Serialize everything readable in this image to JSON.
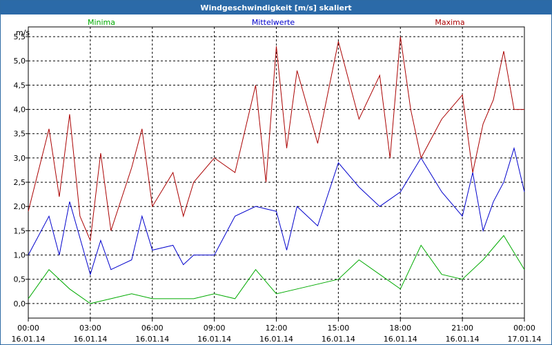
{
  "window": {
    "title": "Windgeschwindigkeit [m/s] skaliert"
  },
  "chart_data": {
    "type": "line",
    "title": "Windgeschwindigkeit [m/s] skaliert",
    "ylabel": "m/s",
    "ylim": [
      -0.3,
      5.7
    ],
    "yticks": [
      "0,0",
      "0,5",
      "1,0",
      "1,5",
      "2,0",
      "2,5",
      "3,0",
      "3,5",
      "4,0",
      "4,5",
      "5,0",
      "5,5"
    ],
    "ytick_values": [
      0,
      0.5,
      1,
      1.5,
      2,
      2.5,
      3,
      3.5,
      4,
      4.5,
      5,
      5.5
    ],
    "xlim_hours": [
      0,
      24
    ],
    "xticks": [
      {
        "time": "00:00",
        "date": "16.01.14",
        "hour": 0
      },
      {
        "time": "03:00",
        "date": "16.01.14",
        "hour": 3
      },
      {
        "time": "06:00",
        "date": "16.01.14",
        "hour": 6
      },
      {
        "time": "09:00",
        "date": "16.01.14",
        "hour": 9
      },
      {
        "time": "12:00",
        "date": "16.01.14",
        "hour": 12
      },
      {
        "time": "15:00",
        "date": "16.01.14",
        "hour": 15
      },
      {
        "time": "18:00",
        "date": "16.01.14",
        "hour": 18
      },
      {
        "time": "21:00",
        "date": "16.01.14",
        "hour": 21
      },
      {
        "time": "00:00",
        "date": "17.01.14",
        "hour": 24
      }
    ],
    "grid": true,
    "legend": "top",
    "series": [
      {
        "name": "Minima",
        "color": "#00aa00",
        "hours": [
          0,
          1,
          2,
          3,
          4,
          5,
          6,
          7,
          8,
          9,
          10,
          11,
          12,
          13,
          14,
          15,
          16,
          17,
          18,
          19,
          20,
          21,
          22,
          23,
          24
        ],
        "values": [
          0.1,
          0.7,
          0.3,
          0.0,
          0.1,
          0.2,
          0.1,
          0.1,
          0.1,
          0.2,
          0.1,
          0.7,
          0.2,
          0.3,
          0.4,
          0.5,
          0.9,
          0.6,
          0.3,
          1.2,
          0.6,
          0.5,
          0.9,
          1.4,
          0.7
        ]
      },
      {
        "name": "Mittelwerte",
        "color": "#0000cc",
        "hours": [
          0,
          1,
          1.5,
          2,
          3,
          3.5,
          4,
          5,
          5.5,
          6,
          7,
          7.5,
          8,
          9,
          10,
          11,
          12,
          12.5,
          13,
          14,
          15,
          16,
          17,
          18,
          19,
          20,
          21,
          21.5,
          22,
          22.5,
          23,
          23.5,
          24
        ],
        "values": [
          1.0,
          1.8,
          1.0,
          2.1,
          0.6,
          1.3,
          0.7,
          0.9,
          1.8,
          1.1,
          1.2,
          0.8,
          1.0,
          1.0,
          1.8,
          2.0,
          1.9,
          1.1,
          2.0,
          1.6,
          2.9,
          2.4,
          2.0,
          2.3,
          3.0,
          2.3,
          1.8,
          2.7,
          1.5,
          2.1,
          2.5,
          3.2,
          2.3
        ]
      },
      {
        "name": "Maxima",
        "color": "#aa0000",
        "hours": [
          0,
          1,
          1.5,
          2,
          2.5,
          3,
          3.5,
          4,
          5,
          5.5,
          6,
          7,
          7.5,
          8,
          9,
          10,
          11,
          11.5,
          12,
          12.5,
          13,
          14,
          15,
          16,
          17,
          17.5,
          18,
          18.5,
          19,
          20,
          21,
          21.5,
          22,
          22.5,
          23,
          23.5,
          24
        ],
        "values": [
          1.9,
          3.6,
          2.2,
          3.9,
          1.8,
          1.3,
          3.1,
          1.5,
          2.8,
          3.6,
          2.0,
          2.7,
          1.8,
          2.5,
          3.0,
          2.7,
          4.5,
          2.5,
          5.3,
          3.2,
          4.8,
          3.3,
          5.4,
          3.8,
          4.7,
          3.0,
          5.5,
          4.0,
          3.0,
          3.8,
          4.3,
          2.7,
          3.7,
          4.2,
          5.2,
          4.0,
          4.0
        ]
      }
    ]
  }
}
